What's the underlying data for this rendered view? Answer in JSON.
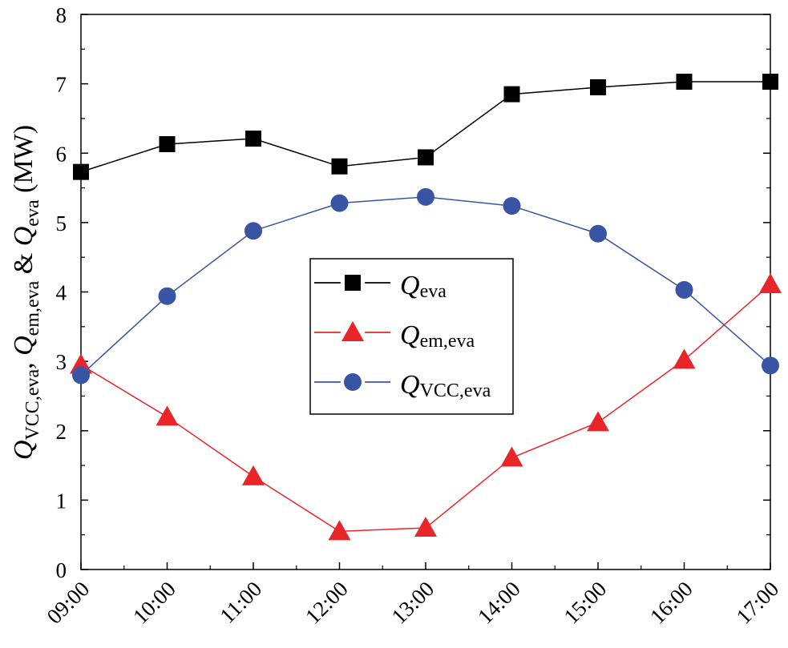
{
  "chart_data": {
    "type": "line",
    "title": "",
    "xlabel": "",
    "ylabel": {
      "prefix": "Q",
      "sub1": "VCC,eva",
      "mid1": ", ",
      "q2": "Q",
      "sub2": "em,eva",
      "mid2": " & ",
      "q3": "Q",
      "sub3": "eva",
      "unit": " (MW)"
    },
    "ylim": [
      0,
      8
    ],
    "yticks": [
      "0",
      "1",
      "2",
      "3",
      "4",
      "5",
      "6",
      "7",
      "8"
    ],
    "categories": [
      "09:00",
      "10:00",
      "11:00",
      "12:00",
      "13:00",
      "14:00",
      "15:00",
      "16:00",
      "17:00"
    ],
    "legend_position": "center",
    "series": [
      {
        "name": "Q",
        "sub": "eva",
        "color": "#000000",
        "marker": "square",
        "values": [
          5.73,
          6.13,
          6.21,
          5.81,
          5.94,
          6.85,
          6.95,
          7.03,
          7.03
        ]
      },
      {
        "name": "Q",
        "sub": "em,eva",
        "color": "#e8262a",
        "marker": "triangle",
        "values": [
          2.95,
          2.2,
          1.34,
          0.55,
          0.6,
          1.61,
          2.12,
          3.02,
          4.11
        ]
      },
      {
        "name": "Q",
        "sub": "VCC,eva",
        "color": "#3a54a4",
        "marker": "circle",
        "values": [
          2.8,
          3.94,
          4.88,
          5.28,
          5.37,
          5.24,
          4.84,
          4.03,
          2.94
        ]
      }
    ]
  }
}
